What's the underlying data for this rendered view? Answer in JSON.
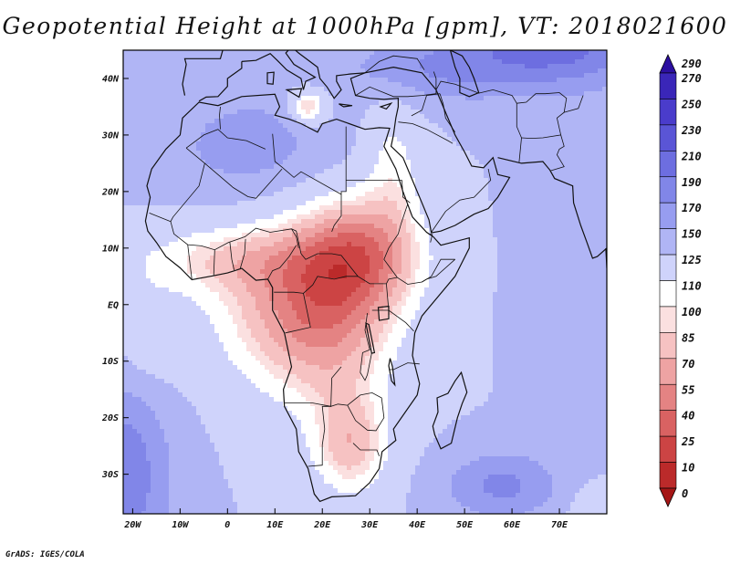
{
  "title": "Geopotential Height at 1000hPa [gpm], VT: 2018021600",
  "credit": "GrADS: IGES/COLA",
  "map": {
    "lon_range": [
      -22,
      80
    ],
    "lat_range": [
      -37,
      45
    ],
    "lon_ticks": [
      "20W",
      "10W",
      "0",
      "10E",
      "20E",
      "30E",
      "40E",
      "50E",
      "60E",
      "70E"
    ],
    "lat_ticks": [
      "40N",
      "30N",
      "20N",
      "10N",
      "EQ",
      "10S",
      "20S",
      "30S"
    ]
  },
  "colorbar": {
    "levels": [
      "290",
      "270",
      "250",
      "230",
      "210",
      "190",
      "170",
      "150",
      "125",
      "110",
      "100",
      "85",
      "70",
      "55",
      "40",
      "25",
      "10",
      "0"
    ],
    "colors": [
      "#2c0fa0",
      "#3a26b8",
      "#4a3ccb",
      "#5a55d6",
      "#6d6ee0",
      "#8186e8",
      "#979df0",
      "#b0b5f5",
      "#cfd3fb",
      "#ffffff",
      "#fbe0e0",
      "#f6c2c2",
      "#eea3a3",
      "#e48383",
      "#d96262",
      "#cc4444",
      "#bb2a2a",
      "#a51616"
    ]
  },
  "chart_data": {
    "type": "heatmap",
    "title": "Geopotential Height at 1000hPa [gpm], VT: 2018021600",
    "variable": "Geopotential Height at 1000hPa",
    "units": "gpm",
    "valid_time": "2018021600",
    "xlabel": "",
    "ylabel": "",
    "x_ticks": [
      "20W",
      "10W",
      "0",
      "10E",
      "20E",
      "30E",
      "40E",
      "50E",
      "60E",
      "70E"
    ],
    "y_ticks": [
      "40N",
      "30N",
      "20N",
      "10N",
      "EQ",
      "10S",
      "20S",
      "30S"
    ],
    "contour_levels": [
      0,
      10,
      25,
      40,
      55,
      70,
      85,
      100,
      110,
      125,
      150,
      170,
      190,
      210,
      230,
      250,
      270,
      290
    ],
    "value_range": [
      0,
      300
    ]
  }
}
